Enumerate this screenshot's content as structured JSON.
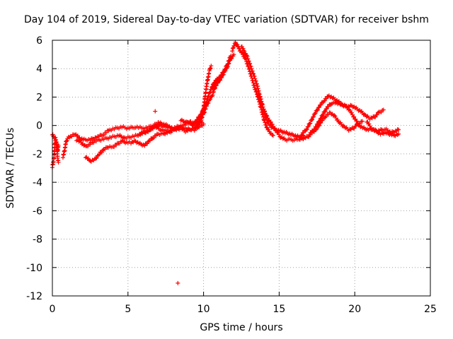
{
  "chart_data": {
    "type": "scatter",
    "title": "Day 104 of 2019, Sidereal Day-to-day VTEC variation (SDTVAR) for receiver bshm",
    "xlabel": "GPS time / hours",
    "ylabel": "SDTVAR / TECUs",
    "xlim": [
      0,
      25
    ],
    "ylim": [
      -12,
      6
    ],
    "xticks": [
      0,
      5,
      10,
      15,
      20,
      25
    ],
    "yticks": [
      -12,
      -10,
      -8,
      -6,
      -4,
      -2,
      0,
      2,
      4,
      6
    ],
    "grid": true,
    "marker": "+",
    "color": "#ff0000",
    "series": [
      {
        "name": "SDTVAR",
        "tracks": [
          [
            [
              0.0,
              -2.9
            ],
            [
              0.05,
              -2.6
            ],
            [
              0.1,
              -2.4
            ],
            [
              0.15,
              -1.5
            ],
            [
              0.2,
              -1.1
            ],
            [
              0.3,
              -1.6
            ],
            [
              0.35,
              -2.3
            ],
            [
              0.4,
              -2.6
            ]
          ],
          [
            [
              0.0,
              -0.6
            ],
            [
              0.1,
              -0.8
            ],
            [
              0.2,
              -0.9
            ],
            [
              0.3,
              -1.3
            ],
            [
              0.35,
              -1.8
            ],
            [
              0.4,
              -1.4
            ]
          ],
          [
            [
              0.7,
              -2.2
            ],
            [
              0.8,
              -1.8
            ],
            [
              0.9,
              -1.2
            ],
            [
              1.0,
              -0.9
            ],
            [
              1.2,
              -0.8
            ],
            [
              1.5,
              -0.6
            ],
            [
              1.8,
              -0.9
            ],
            [
              2.1,
              -1.0
            ],
            [
              2.5,
              -1.0
            ],
            [
              3.0,
              -0.8
            ],
            [
              3.4,
              -0.6
            ],
            [
              3.8,
              -0.3
            ],
            [
              4.2,
              -0.2
            ],
            [
              4.6,
              -0.1
            ],
            [
              5.0,
              -0.2
            ],
            [
              5.5,
              -0.1
            ],
            [
              6.0,
              -0.2
            ],
            [
              6.5,
              -0.1
            ],
            [
              7.0,
              0.0
            ],
            [
              7.5,
              -0.1
            ],
            [
              8.0,
              -0.2
            ],
            [
              8.5,
              0.0
            ],
            [
              9.0,
              0.1
            ],
            [
              9.4,
              0.2
            ],
            [
              9.7,
              0.3
            ],
            [
              9.9,
              0.2
            ]
          ],
          [
            [
              1.6,
              -1.0
            ],
            [
              1.9,
              -1.2
            ],
            [
              2.2,
              -1.5
            ],
            [
              2.5,
              -1.3
            ],
            [
              2.8,
              -1.1
            ],
            [
              3.2,
              -1.0
            ],
            [
              3.6,
              -0.9
            ],
            [
              4.0,
              -0.8
            ],
            [
              4.4,
              -0.7
            ],
            [
              4.8,
              -0.9
            ],
            [
              5.2,
              -0.8
            ],
            [
              5.6,
              -0.7
            ],
            [
              6.0,
              -0.5
            ],
            [
              6.4,
              -0.3
            ],
            [
              6.8,
              -0.1
            ],
            [
              7.2,
              -0.3
            ],
            [
              7.6,
              -0.4
            ],
            [
              8.0,
              -0.3
            ],
            [
              8.4,
              -0.1
            ],
            [
              8.8,
              -0.2
            ],
            [
              9.2,
              -0.3
            ]
          ],
          [
            [
              2.2,
              -2.2
            ],
            [
              2.5,
              -2.5
            ],
            [
              2.8,
              -2.4
            ],
            [
              3.1,
              -2.0
            ],
            [
              3.4,
              -1.7
            ],
            [
              3.7,
              -1.5
            ],
            [
              4.0,
              -1.5
            ],
            [
              4.3,
              -1.3
            ],
            [
              4.6,
              -1.1
            ],
            [
              4.9,
              -1.2
            ],
            [
              5.2,
              -1.2
            ],
            [
              5.5,
              -1.1
            ],
            [
              5.8,
              -1.3
            ],
            [
              6.1,
              -1.4
            ],
            [
              6.4,
              -1.1
            ],
            [
              6.7,
              -0.8
            ],
            [
              7.0,
              -0.6
            ],
            [
              7.3,
              -0.6
            ],
            [
              7.6,
              -0.5
            ],
            [
              7.9,
              -0.4
            ]
          ],
          [
            [
              5.8,
              -0.6
            ],
            [
              6.1,
              -0.5
            ],
            [
              6.4,
              -0.4
            ],
            [
              6.7,
              0.0
            ],
            [
              7.0,
              0.2
            ],
            [
              7.3,
              0.1
            ],
            [
              7.6,
              0.0
            ],
            [
              7.9,
              -0.2
            ],
            [
              8.2,
              -0.3
            ],
            [
              8.5,
              -0.2
            ],
            [
              8.8,
              -0.4
            ],
            [
              9.1,
              -0.3
            ],
            [
              9.4,
              -0.2
            ],
            [
              9.7,
              -0.1
            ],
            [
              10.0,
              0.1
            ]
          ],
          [
            [
              6.8,
              1.0
            ]
          ],
          [
            [
              8.3,
              -11.1
            ]
          ],
          [
            [
              8.5,
              0.4
            ],
            [
              8.7,
              0.3
            ],
            [
              8.9,
              0.2
            ],
            [
              9.1,
              0.3
            ],
            [
              9.3,
              0.0
            ],
            [
              9.5,
              0.3
            ],
            [
              9.7,
              0.6
            ],
            [
              9.9,
              0.9
            ],
            [
              10.1,
              1.4
            ],
            [
              10.3,
              2.0
            ],
            [
              10.5,
              2.6
            ],
            [
              10.7,
              3.0
            ],
            [
              10.9,
              3.3
            ]
          ],
          [
            [
              9.4,
              -0.3
            ],
            [
              9.6,
              0.1
            ],
            [
              9.8,
              0.5
            ],
            [
              10.0,
              1.2
            ],
            [
              10.1,
              2.0
            ],
            [
              10.2,
              2.8
            ],
            [
              10.3,
              3.4
            ],
            [
              10.4,
              3.9
            ],
            [
              10.5,
              4.2
            ]
          ],
          [
            [
              9.6,
              -0.1
            ],
            [
              9.8,
              0.3
            ],
            [
              10.0,
              0.8
            ],
            [
              10.2,
              1.4
            ],
            [
              10.4,
              1.8
            ],
            [
              10.6,
              2.2
            ],
            [
              10.8,
              2.8
            ],
            [
              11.0,
              3.1
            ],
            [
              11.2,
              3.4
            ],
            [
              11.4,
              3.8
            ],
            [
              11.6,
              4.2
            ],
            [
              11.8,
              4.7
            ],
            [
              12.0,
              5.0
            ]
          ],
          [
            [
              10.6,
              2.6
            ],
            [
              10.8,
              3.1
            ],
            [
              11.0,
              3.3
            ],
            [
              11.2,
              3.6
            ],
            [
              11.4,
              3.9
            ],
            [
              11.6,
              4.4
            ],
            [
              11.8,
              4.9
            ]
          ],
          [
            [
              11.9,
              5.3
            ],
            [
              12.0,
              5.6
            ],
            [
              12.1,
              5.8
            ],
            [
              12.2,
              5.7
            ],
            [
              12.3,
              5.5
            ],
            [
              12.4,
              5.3
            ],
            [
              12.6,
              5.0
            ],
            [
              12.8,
              4.6
            ],
            [
              13.0,
              4.0
            ],
            [
              13.2,
              3.3
            ],
            [
              13.4,
              2.6
            ],
            [
              13.6,
              2.0
            ],
            [
              13.8,
              1.2
            ],
            [
              14.0,
              0.4
            ],
            [
              14.2,
              -0.2
            ],
            [
              14.4,
              -0.5
            ],
            [
              14.6,
              -0.7
            ]
          ],
          [
            [
              12.5,
              5.6
            ],
            [
              12.7,
              5.2
            ],
            [
              12.9,
              4.8
            ],
            [
              13.1,
              4.2
            ],
            [
              13.3,
              3.6
            ],
            [
              13.5,
              3.0
            ],
            [
              13.7,
              2.2
            ],
            [
              13.9,
              1.4
            ],
            [
              14.1,
              0.6
            ],
            [
              14.3,
              0.1
            ],
            [
              14.5,
              -0.1
            ],
            [
              14.8,
              -0.3
            ],
            [
              15.1,
              -0.4
            ],
            [
              15.4,
              -0.5
            ],
            [
              15.7,
              -0.6
            ],
            [
              16.0,
              -0.7
            ],
            [
              16.3,
              -0.8
            ],
            [
              16.6,
              -0.7
            ]
          ],
          [
            [
              13.6,
              2.2
            ],
            [
              13.9,
              1.3
            ],
            [
              14.2,
              0.6
            ],
            [
              14.5,
              0.1
            ],
            [
              14.8,
              -0.4
            ],
            [
              15.1,
              -0.8
            ],
            [
              15.4,
              -1.0
            ],
            [
              15.7,
              -1.0
            ],
            [
              16.0,
              -1.0
            ],
            [
              16.3,
              -1.0
            ],
            [
              16.6,
              -0.9
            ],
            [
              16.9,
              -0.8
            ],
            [
              17.2,
              -0.5
            ],
            [
              17.5,
              -0.2
            ],
            [
              17.8,
              0.3
            ],
            [
              18.1,
              0.7
            ],
            [
              18.4,
              0.9
            ],
            [
              18.7,
              0.6
            ],
            [
              19.0,
              0.2
            ],
            [
              19.3,
              -0.1
            ],
            [
              19.6,
              -0.3
            ],
            [
              19.9,
              -0.2
            ],
            [
              20.2,
              0.1
            ],
            [
              20.5,
              0.3
            ]
          ],
          [
            [
              16.5,
              -0.6
            ],
            [
              16.8,
              -0.3
            ],
            [
              17.1,
              0.3
            ],
            [
              17.4,
              0.9
            ],
            [
              17.7,
              1.4
            ],
            [
              18.0,
              1.8
            ],
            [
              18.3,
              2.1
            ],
            [
              18.6,
              1.9
            ],
            [
              18.9,
              1.7
            ],
            [
              19.2,
              1.4
            ],
            [
              19.5,
              1.3
            ],
            [
              19.8,
              1.4
            ],
            [
              20.1,
              1.2
            ],
            [
              20.4,
              1.0
            ],
            [
              20.7,
              0.7
            ],
            [
              21.0,
              0.5
            ],
            [
              21.3,
              0.6
            ],
            [
              21.6,
              0.9
            ],
            [
              21.9,
              1.1
            ]
          ],
          [
            [
              17.0,
              -0.6
            ],
            [
              17.3,
              -0.3
            ],
            [
              17.6,
              0.2
            ],
            [
              17.9,
              0.8
            ],
            [
              18.2,
              1.3
            ],
            [
              18.5,
              1.6
            ],
            [
              18.8,
              1.6
            ],
            [
              19.1,
              1.5
            ],
            [
              19.4,
              1.4
            ],
            [
              19.7,
              1.0
            ],
            [
              20.0,
              0.5
            ],
            [
              20.3,
              0.0
            ],
            [
              20.6,
              -0.2
            ],
            [
              20.9,
              -0.3
            ],
            [
              21.2,
              -0.3
            ],
            [
              21.5,
              -0.4
            ],
            [
              21.8,
              -0.3
            ],
            [
              22.1,
              -0.3
            ],
            [
              22.4,
              -0.5
            ],
            [
              22.7,
              -0.4
            ],
            [
              22.9,
              -0.3
            ]
          ],
          [
            [
              20.8,
              0.3
            ],
            [
              21.1,
              -0.2
            ],
            [
              21.4,
              -0.4
            ],
            [
              21.7,
              -0.6
            ],
            [
              22.0,
              -0.5
            ],
            [
              22.3,
              -0.6
            ],
            [
              22.6,
              -0.7
            ],
            [
              22.9,
              -0.6
            ]
          ]
        ]
      }
    ]
  }
}
